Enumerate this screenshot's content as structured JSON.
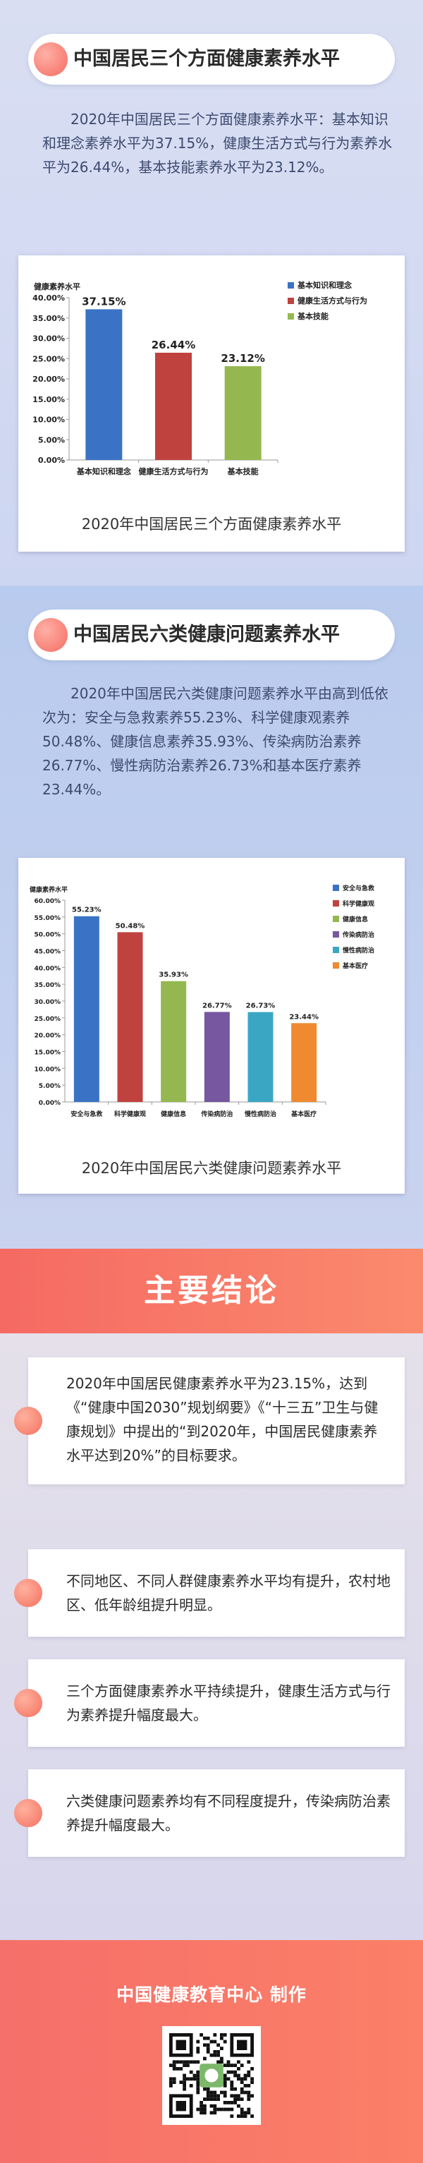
{
  "section1": {
    "title": "中国居民三个方面健康素养水平",
    "paragraph": "2020年中国居民三个方面健康素养水平：基本知识和理念素养水平为37.15%，健康生活方式与行为素养水平为26.44%，基本技能素养水平为23.12%。",
    "caption": "2020年中国居民三个方面健康素养水平"
  },
  "section2": {
    "title": "中国居民六类健康问题素养水平",
    "paragraph": "2020年中国居民六类健康问题素养水平由高到低依次为：安全与急救素养55.23%、科学健康观素养50.48%、健康信息素养35.93%、传染病防治素养26.77%、慢性病防治素养26.73%和基本医疗素养23.44%。",
    "caption": "2020年中国居民六类健康问题素养水平"
  },
  "conclusion": {
    "title": "主要结论",
    "items": [
      "2020年中国居民健康素养水平为23.15%，达到《“健康中国2030”规划纲要》《“十三五”卫生与健康规划》中提出的“到2020年，中国居民健康素养水平达到20%”的目标要求。",
      "不同地区、不同人群健康素养水平均有提升，农村地区、低年龄组提升明显。",
      "三个方面健康素养水平持续提升，健康生活方式与行为素养提升幅度最大。",
      "六类健康问题素养均有不同程度提升，传染病防治素养提升幅度最大。"
    ]
  },
  "footer": {
    "producer": "中国健康教育中心 制作",
    "qr_icon": "qr-code-icon"
  },
  "chart_data": [
    {
      "type": "bar",
      "ylabel": "健康素养水平",
      "ylim": [
        0,
        40
      ],
      "yticks": [
        "0.00%",
        "5.00%",
        "10.00%",
        "15.00%",
        "20.00%",
        "25.00%",
        "30.00%",
        "35.00%",
        "40.00%"
      ],
      "categories": [
        "基本知识和理念",
        "健康生活方式与行为",
        "基本技能"
      ],
      "values": [
        37.15,
        26.44,
        23.12
      ],
      "labels": [
        "37.15%",
        "26.44%",
        "23.12%"
      ],
      "colors": [
        "#3a73c5",
        "#c0423e",
        "#94b84f"
      ],
      "legend": [
        "基本知识和理念",
        "健康生活方式与行为",
        "基本技能"
      ],
      "legend_position": "top-right",
      "grid": false
    },
    {
      "type": "bar",
      "ylabel": "健康素养水平",
      "ylim": [
        0,
        60
      ],
      "yticks": [
        "0.00%",
        "5.00%",
        "10.00%",
        "15.00%",
        "20.00%",
        "25.00%",
        "30.00%",
        "35.00%",
        "40.00%",
        "45.00%",
        "50.00%",
        "55.00%",
        "60.00%"
      ],
      "categories": [
        "安全与急救",
        "科学健康观",
        "健康信息",
        "传染病防治",
        "慢性病防治",
        "基本医疗"
      ],
      "values": [
        55.23,
        50.48,
        35.93,
        26.77,
        26.73,
        23.44
      ],
      "labels": [
        "55.23%",
        "50.48%",
        "35.93%",
        "26.77%",
        "26.73%",
        "23.44%"
      ],
      "colors": [
        "#3a73c5",
        "#c0423e",
        "#94b84f",
        "#7657a0",
        "#3aa6c4",
        "#ef8a31"
      ],
      "legend": [
        "安全与急救",
        "科学健康观",
        "健康信息",
        "传染病防治",
        "慢性病防治",
        "基本医疗"
      ],
      "legend_position": "top-right",
      "grid": false
    }
  ]
}
